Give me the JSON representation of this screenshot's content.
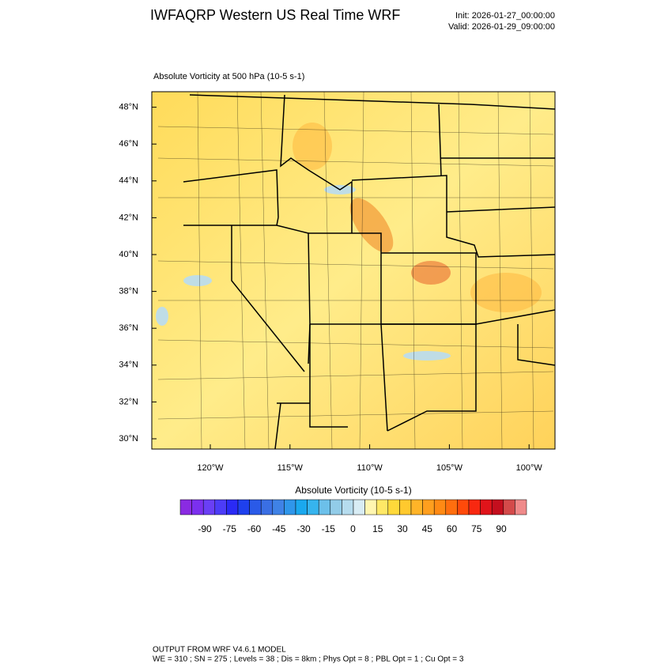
{
  "header": {
    "title": "IWFAQRP Western US Real Time WRF",
    "init": "Init: 2026-01-27_00:00:00",
    "valid": "Valid: 2026-01-29_09:00:00"
  },
  "map": {
    "subtitle": "Absolute Vorticity at 500 hPa   (10-5 s-1)",
    "lat_labels": [
      "30°N",
      "32°N",
      "34°N",
      "36°N",
      "38°N",
      "40°N",
      "42°N",
      "44°N",
      "46°N",
      "48°N"
    ],
    "lon_labels": [
      "120°W",
      "115°W",
      "110°W",
      "105°W",
      "100°W"
    ]
  },
  "colorbar": {
    "title": "Absolute Vorticity  (10-5 s-1)",
    "labels": [
      -90,
      -75,
      -60,
      -45,
      -30,
      -15,
      0,
      15,
      30,
      45,
      60,
      75,
      90
    ],
    "colors": [
      "#8a2be2",
      "#7b30ee",
      "#6a3ff5",
      "#4c3cf7",
      "#2a2af5",
      "#1e40ee",
      "#2a5ae8",
      "#3a6fe4",
      "#3f82e6",
      "#2f96ea",
      "#1aa8ee",
      "#36b4ee",
      "#6cc0ea",
      "#92cce8",
      "#b6dcee",
      "#d8ecf4",
      "#fff6b0",
      "#ffe866",
      "#ffd93a",
      "#ffc92e",
      "#ffb428",
      "#ff9f1e",
      "#ff8a14",
      "#ff6e0e",
      "#ff4a0a",
      "#f82810",
      "#e0141a",
      "#c40f1e",
      "#d44a4a",
      "#ef8a8a"
    ]
  },
  "footer": {
    "line1": "OUTPUT FROM WRF V4.6.1 MODEL",
    "line2": "WE = 310 ; SN = 275 ; Levels = 38 ; Dis = 8km ; Phys Opt = 8 ; PBL Opt = 1 ; Cu Opt = 3"
  }
}
